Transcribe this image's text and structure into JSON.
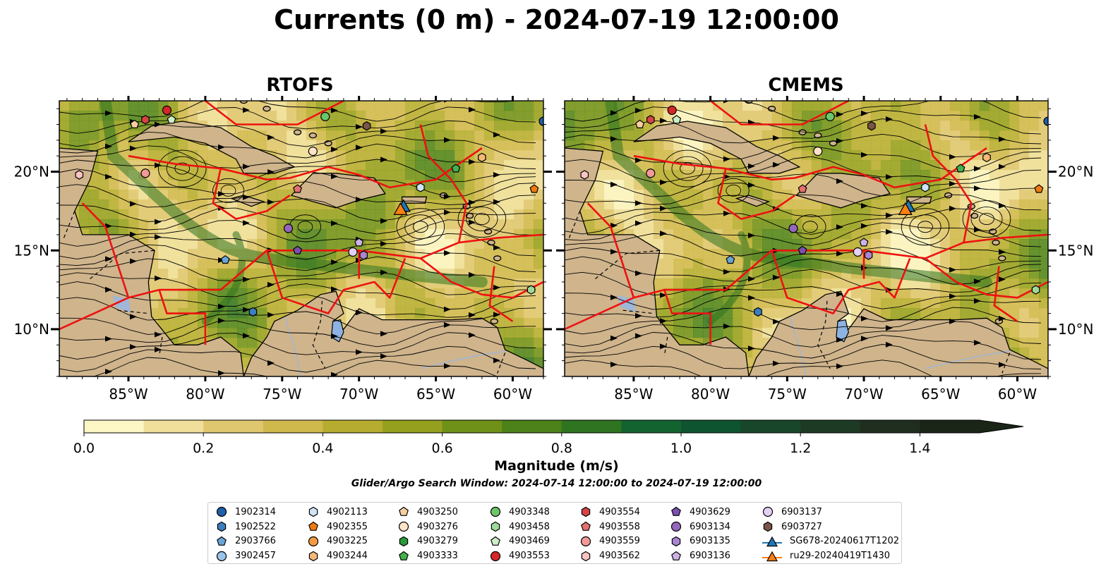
{
  "title": "Currents (0 m) - 2024-07-19 12:00:00",
  "panels": [
    {
      "title": "RTOFS"
    },
    {
      "title": "CMEMS"
    }
  ],
  "map": {
    "lon_range": [
      -89.5,
      -58
    ],
    "lat_range": [
      7,
      24.5
    ],
    "lon_ticks": [
      {
        "value": -85,
        "label": "85°W"
      },
      {
        "value": -80,
        "label": "80°W"
      },
      {
        "value": -75,
        "label": "75°W"
      },
      {
        "value": -70,
        "label": "70°W"
      },
      {
        "value": -65,
        "label": "65°W"
      },
      {
        "value": -60,
        "label": "60°W"
      }
    ],
    "lat_ticks": [
      {
        "value": 10,
        "label": "10°N"
      },
      {
        "value": 15,
        "label": "15°N"
      },
      {
        "value": 20,
        "label": "20°N"
      }
    ],
    "land_color": "#cfb48c",
    "water_color": "#f3ecb0",
    "eez_color": "#ee1111"
  },
  "colorbar": {
    "label": "Magnitude (m/s)",
    "ticks": [
      "0.0",
      "0.2",
      "0.4",
      "0.6",
      "0.8",
      "1.0",
      "1.2",
      "1.4"
    ],
    "range": [
      0,
      1.5
    ],
    "colors": [
      "#fbf6c4",
      "#efdf9a",
      "#dfc770",
      "#cfb84c",
      "#b6ad30",
      "#95a01e",
      "#6f9117",
      "#4c8219",
      "#2f7420",
      "#136331",
      "#0f5430",
      "#18462a",
      "#1d3a25",
      "#1f2e1f",
      "#1a2417"
    ]
  },
  "search_window": "Glider/Argo Search Window: 2024-07-14 12:00:00 to 2024-07-19 12:00:00",
  "legend": [
    {
      "label": "1902314",
      "marker": "circle",
      "color": "#1f5fa8"
    },
    {
      "label": "1902522",
      "marker": "hexagon",
      "color": "#3b7fc0"
    },
    {
      "label": "2903766",
      "marker": "pentagon",
      "color": "#6aa5d6"
    },
    {
      "label": "3902457",
      "marker": "circle",
      "color": "#9cc4e8"
    },
    {
      "label": "4902113",
      "marker": "hexagon",
      "color": "#cfe4f7"
    },
    {
      "label": "4902355",
      "marker": "pentagon",
      "color": "#f07a12"
    },
    {
      "label": "4903225",
      "marker": "circle",
      "color": "#f59a40"
    },
    {
      "label": "4903244",
      "marker": "hexagon",
      "color": "#f7b878"
    },
    {
      "label": "4903250",
      "marker": "pentagon",
      "color": "#f9cfa0"
    },
    {
      "label": "4903276",
      "marker": "circle",
      "color": "#fde3c8"
    },
    {
      "label": "4903279",
      "marker": "hexagon",
      "color": "#2a9a3a"
    },
    {
      "label": "4903333",
      "marker": "pentagon",
      "color": "#45b04e"
    },
    {
      "label": "4903348",
      "marker": "circle",
      "color": "#6cc66a"
    },
    {
      "label": "4903458",
      "marker": "hexagon",
      "color": "#9ed99a"
    },
    {
      "label": "4903469",
      "marker": "pentagon",
      "color": "#cdeec8"
    },
    {
      "label": "4903553",
      "marker": "circle",
      "color": "#d62728"
    },
    {
      "label": "4903554",
      "marker": "hexagon",
      "color": "#d64545"
    },
    {
      "label": "4903558",
      "marker": "pentagon",
      "color": "#e57070"
    },
    {
      "label": "4903559",
      "marker": "circle",
      "color": "#f29a98"
    },
    {
      "label": "4903562",
      "marker": "hexagon",
      "color": "#fbc3c2"
    },
    {
      "label": "4903629",
      "marker": "pentagon",
      "color": "#7b4fb0"
    },
    {
      "label": "6903134",
      "marker": "circle",
      "color": "#9467bd"
    },
    {
      "label": "6903135",
      "marker": "hexagon",
      "color": "#ab86d0"
    },
    {
      "label": "6903136",
      "marker": "pentagon",
      "color": "#cbb3e5"
    },
    {
      "label": "6903137",
      "marker": "circle",
      "color": "#e2d1f3"
    },
    {
      "label": "6903727",
      "marker": "hexagon",
      "color": "#7a5548"
    },
    {
      "label": "SG678-20240617T1202",
      "marker": "triangle-line",
      "color": "#1f77b4"
    },
    {
      "label": "ru29-20240419T1430",
      "marker": "triangle-line",
      "color": "#ff7f0e"
    }
  ],
  "markers": [
    {
      "id": "4903553",
      "lon": -82.5,
      "lat": 23.9
    },
    {
      "id": "4903554",
      "lon": -83.9,
      "lat": 23.3
    },
    {
      "id": "4903250",
      "lon": -84.6,
      "lat": 23.0
    },
    {
      "id": "4903469",
      "lon": -82.2,
      "lat": 23.3
    },
    {
      "id": "4903348",
      "lon": -72.2,
      "lat": 23.5
    },
    {
      "id": "6903727",
      "lon": -69.5,
      "lat": 22.9
    },
    {
      "id": "1902314",
      "lon": -58.0,
      "lat": 23.2
    },
    {
      "id": "4903276",
      "lon": -73.0,
      "lat": 21.3
    },
    {
      "id": "4903244",
      "lon": -62.0,
      "lat": 20.9
    },
    {
      "id": "4903333",
      "lon": -63.7,
      "lat": 20.2
    },
    {
      "id": "4903562",
      "lon": -88.2,
      "lat": 19.8
    },
    {
      "id": "4903559",
      "lon": -83.9,
      "lat": 19.9
    },
    {
      "id": "4903558",
      "lon": -74.0,
      "lat": 18.9
    },
    {
      "id": "4902113",
      "lon": -66.0,
      "lat": 19.0
    },
    {
      "id": "4902355",
      "lon": -58.6,
      "lat": 18.9
    },
    {
      "id": "6903134",
      "lon": -74.6,
      "lat": 16.4
    },
    {
      "id": "4903629",
      "lon": -74.0,
      "lat": 15.0
    },
    {
      "id": "6903137",
      "lon": -70.4,
      "lat": 14.9
    },
    {
      "id": "6903136",
      "lon": -70.0,
      "lat": 15.5
    },
    {
      "id": "6903135",
      "lon": -69.7,
      "lat": 14.7
    },
    {
      "id": "2903766",
      "lon": -78.7,
      "lat": 14.4
    },
    {
      "id": "1902522",
      "lon": -76.9,
      "lat": 11.1
    },
    {
      "id": "4903458",
      "lon": -58.8,
      "lat": 12.5
    }
  ],
  "gliders": [
    {
      "id": "SG678-20240617T1202",
      "lon": -67.1,
      "lat": 17.8
    },
    {
      "id": "ru29-20240419T1430",
      "lon": -67.3,
      "lat": 17.6
    }
  ]
}
